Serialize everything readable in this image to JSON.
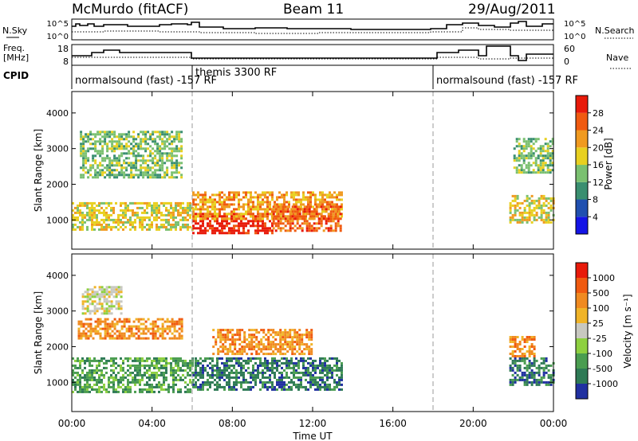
{
  "header": {
    "station": "McMurdo (fitACF)",
    "beam": "Beam 11",
    "date": "29/Aug/2011"
  },
  "left_labels": {
    "nsky": "N.Sky",
    "freq_line1": "Freq.",
    "freq_line2": "[MHz]",
    "cpid": "CPID"
  },
  "right_labels": {
    "nsearch": "N.Search",
    "nave": "Nave"
  },
  "noise_axis": {
    "left_ticks": [
      "10^5",
      "10^0"
    ],
    "right_ticks": [
      "10^5",
      "10^0"
    ]
  },
  "freq_axis": {
    "left_ticks": [
      "18",
      "8"
    ],
    "right_ticks": [
      "60",
      "0"
    ]
  },
  "cpid_segments": [
    {
      "label": "normalsound (fast) -157 RF",
      "start_hour": 0,
      "end_hour": 6
    },
    {
      "label": "themis 3300 RF",
      "start_hour": 6,
      "end_hour": 18
    },
    {
      "label": "normalsound (fast) -157 RF",
      "start_hour": 18,
      "end_hour": 24
    }
  ],
  "x_axis": {
    "ticks": [
      "00:00",
      "04:00",
      "08:00",
      "12:00",
      "16:00",
      "20:00",
      "00:00"
    ],
    "label": "Time UT"
  },
  "y_axis": {
    "label": "Slant Range [km]",
    "ticks": [
      "1000",
      "2000",
      "3000",
      "4000"
    ]
  },
  "power_colorbar": {
    "label": "Power [dB]",
    "ticks": [
      "4",
      "8",
      "12",
      "16",
      "20",
      "24",
      "28"
    ],
    "colors": [
      "#1414e6",
      "#2050b0",
      "#3a8f70",
      "#7ac070",
      "#e8d020",
      "#f09a20",
      "#f05a10",
      "#e81a0a"
    ]
  },
  "velocity_colorbar": {
    "label": "Velocity [m s⁻¹]",
    "ticks": [
      "1000",
      "500",
      "100",
      "25",
      "-25",
      "-100",
      "-500",
      "-1000"
    ],
    "colors": [
      "#2030a0",
      "#2e7a55",
      "#4a9d50",
      "#8ed040",
      "#c8c8c0",
      "#f0b428",
      "#f08a20",
      "#f05a10",
      "#e81a0a"
    ]
  },
  "chart_data": [
    {
      "type": "heatmap",
      "title": "Power [dB]",
      "xlabel": "Time UT",
      "ylabel": "Slant Range [km]",
      "xlim_hours": [
        0,
        24
      ],
      "ylim_km": [
        180,
        4600
      ],
      "regions": [
        {
          "t0": 0.0,
          "t1": 6.0,
          "r0": 700,
          "r1": 1500,
          "level": 4
        },
        {
          "t0": 0.4,
          "t1": 5.5,
          "r0": 2200,
          "r1": 3500,
          "level": 3
        },
        {
          "t0": 6.0,
          "t1": 10.0,
          "r0": 600,
          "r1": 1200,
          "level": 7
        },
        {
          "t0": 6.0,
          "t1": 13.4,
          "r0": 1000,
          "r1": 1800,
          "level": 5
        },
        {
          "t0": 10.0,
          "t1": 13.4,
          "r0": 700,
          "r1": 1400,
          "level": 6
        },
        {
          "t0": 21.8,
          "t1": 24.0,
          "r0": 900,
          "r1": 1700,
          "level": 4
        },
        {
          "t0": 22.0,
          "t1": 24.0,
          "r0": 2300,
          "r1": 3300,
          "level": 3
        }
      ]
    },
    {
      "type": "heatmap",
      "title": "Velocity [m s⁻¹]",
      "xlabel": "Time UT",
      "ylabel": "Slant Range [km]",
      "xlim_hours": [
        0,
        24
      ],
      "ylim_km": [
        180,
        4600
      ],
      "regions": [
        {
          "t0": 0.0,
          "t1": 6.0,
          "r0": 700,
          "r1": 1700,
          "level": 2
        },
        {
          "t0": 0.3,
          "t1": 5.5,
          "r0": 2200,
          "r1": 2800,
          "level": 6
        },
        {
          "t0": 0.5,
          "t1": 2.5,
          "r0": 2900,
          "r1": 3700,
          "level": 4
        },
        {
          "t0": 6.0,
          "t1": 13.4,
          "r0": 800,
          "r1": 1700,
          "level": 1
        },
        {
          "t0": 7.0,
          "t1": 12.0,
          "r0": 1800,
          "r1": 2500,
          "level": 6
        },
        {
          "t0": 21.8,
          "t1": 24.0,
          "r0": 900,
          "r1": 1700,
          "level": 1
        },
        {
          "t0": 21.8,
          "t1": 23.0,
          "r0": 1700,
          "r1": 2300,
          "level": 6
        }
      ]
    }
  ]
}
